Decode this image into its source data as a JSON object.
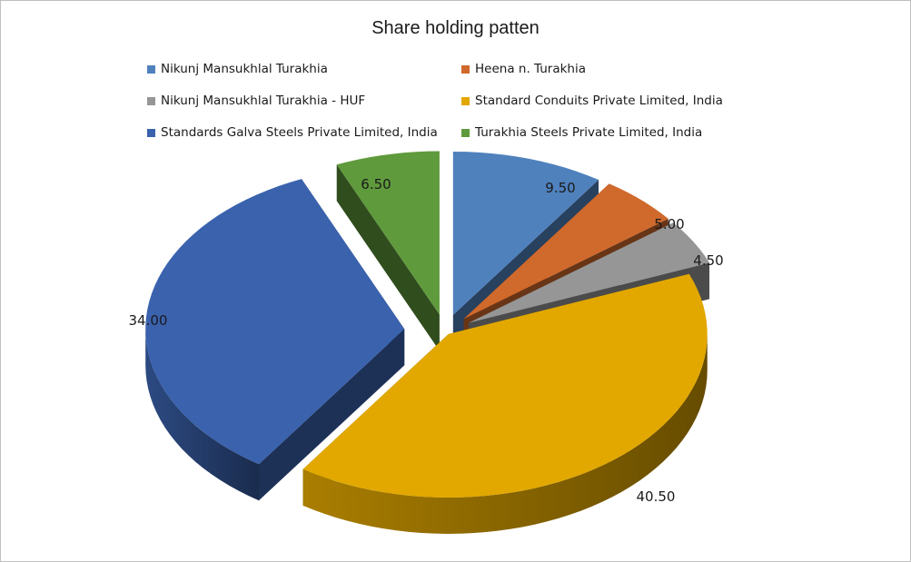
{
  "chart_data": {
    "type": "pie",
    "title": "Share holding patten",
    "legend_position": "top",
    "categories": [
      "Nikunj Mansukhlal Turakhia",
      "Heena n. Turakhia",
      "Nikunj Mansukhlal Turakhia - HUF",
      "Standard Conduits Private Limited, India",
      "Standards Galva Steels Private Limited, India",
      "Turakhia Steels Private Limited, India"
    ],
    "values": [
      9.5,
      5.0,
      4.5,
      40.5,
      34.0,
      6.5
    ],
    "value_labels": [
      "9.50",
      "5.00",
      "4.50",
      "40.50",
      "34.00",
      "6.50"
    ],
    "colors": [
      "#4f81bd",
      "#d0692c",
      "#969696",
      "#e2a800",
      "#3a62ad",
      "#5f9a3c"
    ],
    "exploded": true,
    "three_d": true
  }
}
